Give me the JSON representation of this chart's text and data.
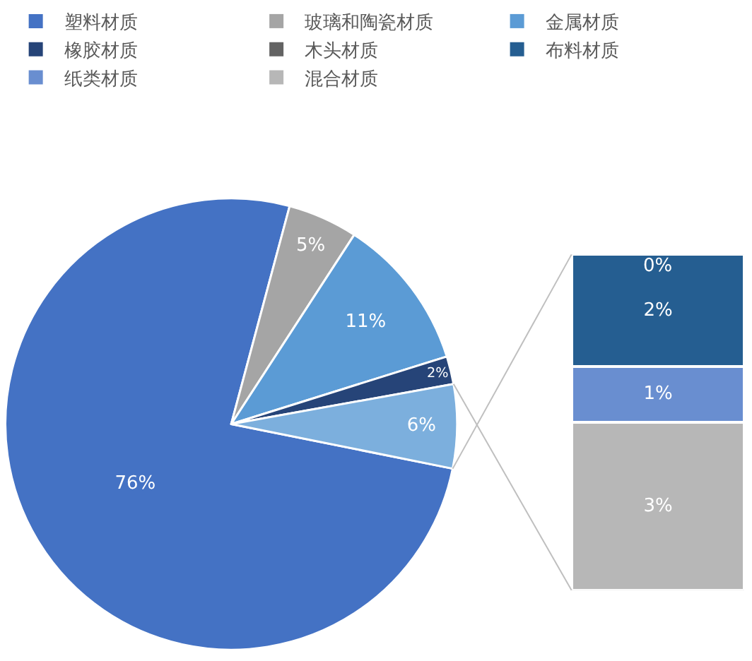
{
  "chart_data": [
    {
      "type": "pie",
      "categories": [
        "塑料材质",
        "玻璃和陶瓷材质",
        "金属材质",
        "橡胶材质",
        null
      ],
      "values": [
        76,
        5,
        11,
        2,
        6
      ],
      "colors": [
        "#4472c4",
        "#a5a5a5",
        "#5b9bd5",
        "#264478",
        "#7cafdd"
      ],
      "value_labels": [
        "76%",
        "5%",
        "11%",
        "2%",
        "6%"
      ],
      "legend": "top"
    },
    {
      "type": "bar",
      "stacked": true,
      "categories": [
        null
      ],
      "legend": "top",
      "series": [
        {
          "name": "混合材质",
          "color": "#b7b7b7",
          "values": [
            3
          ],
          "value_labels": [
            "3%"
          ]
        },
        {
          "name": "纸类材质",
          "color": "#698ed0",
          "values": [
            1
          ],
          "value_labels": [
            "1%"
          ]
        },
        {
          "name": "布料材质",
          "color": "#255e91",
          "values": [
            2
          ],
          "value_labels": [
            "2%"
          ]
        },
        {
          "name": "木头材质",
          "color": "#636363",
          "values": [
            0
          ],
          "value_labels": [
            "0%"
          ]
        }
      ]
    }
  ]
}
